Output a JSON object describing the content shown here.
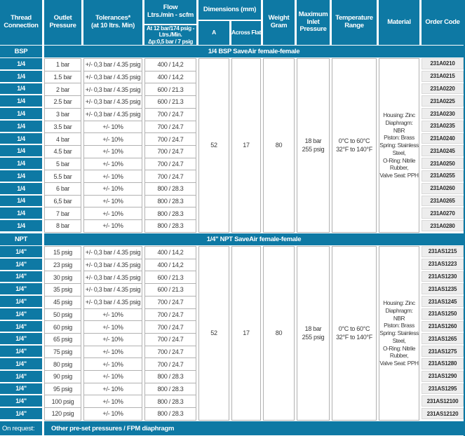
{
  "colors": {
    "teal": "#0e79a4",
    "cell_border": "#b1b1b1",
    "code_bg": "#ededed",
    "code_border": "#d9d9d9",
    "text": "#3a3a3a"
  },
  "header": {
    "thread": "Thread\nConnection",
    "outlet": "Outlet\nPressure",
    "tolerances": "Tolerances*\n(at 10 ltrs. Min)",
    "flow_title": "Flow\nLtrs./min - scfm",
    "flow_sub": "At 12 bar/174 psig -\nLtrs./Min.\nΔp:0,5 bar / 7 psig",
    "dimensions": "Dimensions (mm)",
    "dim_a": "A",
    "dim_across": "Across Flat",
    "weight": "Weight\nGram",
    "max_inlet": "Maximum\nInlet\nPressure",
    "temp": "Temperature\nRange",
    "material": "Material",
    "order": "Order Code"
  },
  "sections": [
    {
      "label": "BSP",
      "band": "1/4 BSP SaveAir female-female",
      "a": "52",
      "across_flat": "17",
      "weight": "80",
      "max_inlet": "18 bar\n255 psig",
      "temp_range": "0°C to 60°C\n32°F to 140°F",
      "material": "Housing: Zinc\nDiaphragm: NBR\nPiston: Brass\nSpring: Stainless\nSteel,\nO-Ring: Nitrile\nRubber,\nValve Seat: PPH",
      "rows": [
        {
          "thread": "1/4",
          "pressure": "1 bar",
          "tolerance": "+/- 0,3 bar / 4.35 psig",
          "flow": "400 / 14,2",
          "code": "231A0210"
        },
        {
          "thread": "1/4",
          "pressure": "1.5 bar",
          "tolerance": "+/- 0,3 bar / 4.35 psig",
          "flow": "400 / 14,2",
          "code": "231A0215"
        },
        {
          "thread": "1/4",
          "pressure": "2 bar",
          "tolerance": "+/- 0,3 bar / 4.35 psig",
          "flow": "600 / 21.3",
          "code": "231A0220"
        },
        {
          "thread": "1/4",
          "pressure": "2.5 bar",
          "tolerance": "+/- 0,3 bar / 4.35 psig",
          "flow": "600 / 21.3",
          "code": "231A0225"
        },
        {
          "thread": "1/4",
          "pressure": "3 bar",
          "tolerance": "+/- 0,3 bar / 4.35 psig",
          "flow": "700 / 24.7",
          "code": "231A0230"
        },
        {
          "thread": "1/4",
          "pressure": "3.5 bar",
          "tolerance": "+/- 10%",
          "flow": "700 / 24.7",
          "code": "231A0235"
        },
        {
          "thread": "1/4",
          "pressure": "4 bar",
          "tolerance": "+/- 10%",
          "flow": "700 / 24.7",
          "code": "231A0240"
        },
        {
          "thread": "1/4",
          "pressure": "4.5 bar",
          "tolerance": "+/- 10%",
          "flow": "700 / 24.7",
          "code": "231A0245"
        },
        {
          "thread": "1/4",
          "pressure": "5 bar",
          "tolerance": "+/- 10%",
          "flow": "700 / 24.7",
          "code": "231A0250"
        },
        {
          "thread": "1/4",
          "pressure": "5.5 bar",
          "tolerance": "+/- 10%",
          "flow": "700 / 24.7",
          "code": "231A0255"
        },
        {
          "thread": "1/4",
          "pressure": "6 bar",
          "tolerance": "+/- 10%",
          "flow": "800 / 28.3",
          "code": "231A0260"
        },
        {
          "thread": "1/4",
          "pressure": "6,5 bar",
          "tolerance": "+/- 10%",
          "flow": "800 / 28.3",
          "code": "231A0265"
        },
        {
          "thread": "1/4",
          "pressure": "7 bar",
          "tolerance": "+/- 10%",
          "flow": "800 / 28.3",
          "code": "231A0270"
        },
        {
          "thread": "1/4",
          "pressure": "8 bar",
          "tolerance": "+/- 10%",
          "flow": "800 / 28.3",
          "code": "231A0280"
        }
      ]
    },
    {
      "label": "NPT",
      "band": "1/4\" NPT SaveAir female-female",
      "a": "52",
      "across_flat": "17",
      "weight": "80",
      "max_inlet": "18 bar\n255 psig",
      "temp_range": "0°C to 60°C\n32°F to 140°F",
      "material": "Housing: Zinc\nDiaphragm: NBR\nPiston: Brass\nSpring: Stainless\nSteel,\nO-Ring: Nitrile\nRubber,\nValve Seat: PPH",
      "rows": [
        {
          "thread": "1/4\"",
          "pressure": "15 psig",
          "tolerance": "+/- 0,3 bar / 4.35 psig",
          "flow": "400 / 14,2",
          "code": "231AS1215"
        },
        {
          "thread": "1/4\"",
          "pressure": "23 psig",
          "tolerance": "+/- 0,3 bar / 4.35 psig",
          "flow": "400 / 14,2",
          "code": "231AS1223"
        },
        {
          "thread": "1/4\"",
          "pressure": "30 psig",
          "tolerance": "+/- 0,3 bar / 4.35 psig",
          "flow": "600 / 21.3",
          "code": "231AS1230"
        },
        {
          "thread": "1/4\"",
          "pressure": "35 psig",
          "tolerance": "+/- 0,3 bar / 4.35 psig",
          "flow": "600 / 21.3",
          "code": "231AS1235"
        },
        {
          "thread": "1/4\"",
          "pressure": "45 psig",
          "tolerance": "+/- 0,3 bar / 4.35 psig",
          "flow": "700 / 24.7",
          "code": "231AS1245"
        },
        {
          "thread": "1/4\"",
          "pressure": "50 psig",
          "tolerance": "+/- 10%",
          "flow": "700 / 24.7",
          "code": "231AS1250"
        },
        {
          "thread": "1/4\"",
          "pressure": "60 psig",
          "tolerance": "+/- 10%",
          "flow": "700 / 24.7",
          "code": "231AS1260"
        },
        {
          "thread": "1/4\"",
          "pressure": "65 psig",
          "tolerance": "+/- 10%",
          "flow": "700 / 24.7",
          "code": "231AS1265"
        },
        {
          "thread": "1/4\"",
          "pressure": "75 psig",
          "tolerance": "+/- 10%",
          "flow": "700 / 24.7",
          "code": "231AS1275"
        },
        {
          "thread": "1/4\"",
          "pressure": "80 psig",
          "tolerance": "+/- 10%",
          "flow": "700 / 24.7",
          "code": "231AS1280"
        },
        {
          "thread": "1/4\"",
          "pressure": "90 psig",
          "tolerance": "+/- 10%",
          "flow": "800 / 28.3",
          "code": "231AS1290"
        },
        {
          "thread": "1/4\"",
          "pressure": "95 psig",
          "tolerance": "+/- 10%",
          "flow": "800 / 28.3",
          "code": "231AS1295"
        },
        {
          "thread": "1/4\"",
          "pressure": "100 psig",
          "tolerance": "+/- 10%",
          "flow": "800 / 28.3",
          "code": "231AS12100"
        },
        {
          "thread": "1/4\"",
          "pressure": "120 psig",
          "tolerance": "+/- 10%",
          "flow": "800 / 28.3",
          "code": "231AS12120"
        }
      ]
    }
  ],
  "footer": {
    "label": "On request:",
    "text": "Other pre-set pressures / FPM diaphragm"
  }
}
